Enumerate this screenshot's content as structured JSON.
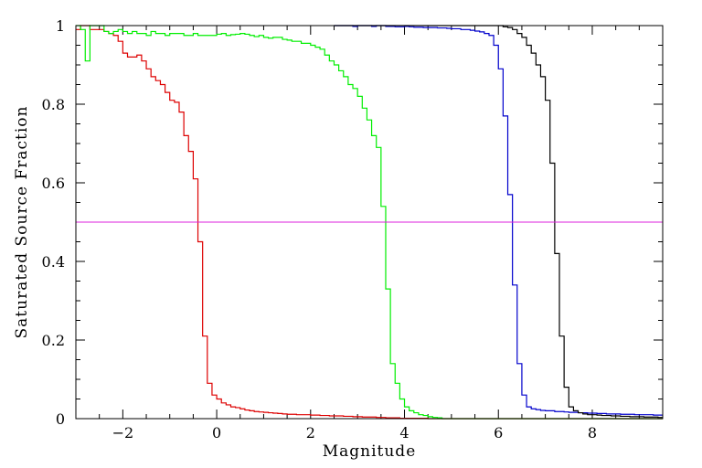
{
  "chart_data": {
    "type": "line",
    "style": "step",
    "title": "",
    "xlabel": "Magnitude",
    "ylabel": "Saturated Source Fraction",
    "xlim": [
      -3.0,
      9.5
    ],
    "ylim": [
      0,
      1
    ],
    "x_major_ticks": [
      -2,
      0,
      2,
      4,
      6,
      8
    ],
    "x_tick_labels": [
      "−2",
      "0",
      "2",
      "4",
      "6",
      "8"
    ],
    "x_minor_step": 0.5,
    "y_major_ticks": [
      0,
      0.2,
      0.4,
      0.6,
      0.8,
      1
    ],
    "y_tick_labels": [
      "0",
      "0.2",
      "0.4",
      "0.6",
      "0.8",
      "1"
    ],
    "y_minor_step": 0.05,
    "grid": false,
    "legend": "none",
    "bin_width": 0.1,
    "reference_line": {
      "y": 0.5,
      "color": "#dd22dd"
    },
    "series": [
      {
        "color": "#dd0000",
        "x_start": -3.0,
        "values": [
          0.99,
          1.0,
          1.0,
          0.99,
          0.99,
          0.99,
          0.985,
          0.98,
          0.975,
          0.96,
          0.93,
          0.92,
          0.92,
          0.925,
          0.91,
          0.89,
          0.87,
          0.86,
          0.85,
          0.83,
          0.81,
          0.805,
          0.78,
          0.72,
          0.68,
          0.61,
          0.45,
          0.21,
          0.09,
          0.06,
          0.05,
          0.04,
          0.035,
          0.03,
          0.028,
          0.025,
          0.022,
          0.02,
          0.018,
          0.017,
          0.016,
          0.015,
          0.014,
          0.013,
          0.012,
          0.011,
          0.011,
          0.01,
          0.01,
          0.01,
          0.009,
          0.009,
          0.008,
          0.008,
          0.007,
          0.007,
          0.007,
          0.006,
          0.006,
          0.005,
          0.005,
          0.004,
          0.004,
          0.004,
          0.003,
          0.003,
          0.002,
          0.002,
          0.002,
          0.001,
          0.001,
          0.001,
          0.001,
          0.001,
          0.001,
          0.0,
          0.0,
          0.0,
          0.0,
          0.0,
          0.0,
          0.0,
          0.0,
          0.0,
          0.0,
          0.0,
          0.0,
          0.0,
          0.0,
          0.0,
          0.0,
          0.0,
          0.0,
          0.0,
          0.0,
          0.0,
          0.0,
          0.0,
          0.0,
          0.0,
          0.0,
          0.0,
          0.0,
          0.0,
          0.0,
          0.0,
          0.0,
          0.0,
          0.0,
          0.0,
          0.0,
          0.0,
          0.0,
          0.0,
          0.0,
          0.0,
          0.0,
          0.0,
          0.0,
          0.0,
          0.0,
          0.0,
          0.0,
          0.0,
          0.0
        ]
      },
      {
        "color": "#00ee00",
        "x_start": -3.0,
        "values": [
          1.0,
          0.99,
          0.91,
          1.0,
          1.0,
          1.0,
          0.985,
          0.98,
          0.985,
          0.99,
          0.985,
          0.98,
          0.985,
          0.98,
          0.98,
          0.975,
          0.985,
          0.98,
          0.98,
          0.975,
          0.98,
          0.98,
          0.98,
          0.975,
          0.975,
          0.98,
          0.975,
          0.975,
          0.975,
          0.975,
          0.978,
          0.98,
          0.975,
          0.977,
          0.978,
          0.98,
          0.978,
          0.975,
          0.972,
          0.975,
          0.97,
          0.968,
          0.97,
          0.97,
          0.965,
          0.963,
          0.96,
          0.96,
          0.955,
          0.955,
          0.95,
          0.945,
          0.94,
          0.925,
          0.91,
          0.9,
          0.885,
          0.87,
          0.85,
          0.84,
          0.82,
          0.79,
          0.76,
          0.72,
          0.69,
          0.54,
          0.33,
          0.14,
          0.09,
          0.05,
          0.03,
          0.02,
          0.015,
          0.01,
          0.008,
          0.005,
          0.003,
          0.002,
          0.0,
          0.0,
          0.0,
          0.0,
          0.0,
          0.0,
          0.0,
          0.0,
          0.0,
          0.0,
          0.0,
          0.0,
          0.0,
          0.0,
          0.0,
          0.0,
          0.0,
          0.0,
          0.0,
          0.0,
          0.0,
          0.0,
          0.0,
          0.0,
          0.0,
          0.0,
          0.0,
          0.0,
          0.0,
          0.0,
          0.0,
          0.0,
          0.0,
          0.0,
          0.0,
          0.0,
          0.0,
          0.0,
          0.0,
          0.0,
          0.0,
          0.0,
          0.0,
          0.0,
          0.0,
          0.0,
          0.0
        ]
      },
      {
        "color": "#0000cc",
        "x_start": 2.5,
        "values": [
          1.0,
          1.0,
          1.0,
          1.0,
          0.998,
          1.0,
          1.0,
          1.0,
          0.998,
          1.0,
          1.0,
          0.998,
          0.998,
          0.997,
          0.997,
          0.998,
          0.997,
          0.996,
          0.996,
          0.995,
          0.995,
          0.995,
          0.994,
          0.994,
          0.993,
          0.992,
          0.992,
          0.99,
          0.99,
          0.988,
          0.986,
          0.984,
          0.98,
          0.975,
          0.95,
          0.89,
          0.77,
          0.57,
          0.34,
          0.14,
          0.06,
          0.03,
          0.025,
          0.023,
          0.021,
          0.02,
          0.02,
          0.018,
          0.018,
          0.017,
          0.016,
          0.016,
          0.015,
          0.015,
          0.014,
          0.014,
          0.013,
          0.013,
          0.012,
          0.012,
          0.012,
          0.011,
          0.011,
          0.011,
          0.01,
          0.01,
          0.01,
          0.01,
          0.009,
          0.009
        ]
      },
      {
        "color": "#000000",
        "x_start": 2.5,
        "values": [
          1.0,
          1.0,
          1.0,
          1.0,
          1.0,
          1.0,
          1.0,
          1.0,
          1.0,
          1.0,
          1.0,
          1.0,
          1.0,
          1.0,
          1.0,
          1.0,
          1.0,
          1.0,
          1.0,
          1.0,
          1.0,
          1.0,
          1.0,
          1.0,
          1.0,
          1.0,
          1.0,
          1.0,
          1.0,
          1.0,
          1.0,
          1.0,
          1.0,
          1.0,
          1.0,
          1.0,
          0.997,
          0.995,
          0.99,
          0.98,
          0.97,
          0.95,
          0.93,
          0.9,
          0.87,
          0.81,
          0.65,
          0.42,
          0.21,
          0.08,
          0.03,
          0.02,
          0.015,
          0.012,
          0.01,
          0.01,
          0.009,
          0.008,
          0.008,
          0.007,
          0.007,
          0.006,
          0.006,
          0.005,
          0.005,
          0.005,
          0.004,
          0.004,
          0.004,
          0.003
        ]
      }
    ]
  }
}
